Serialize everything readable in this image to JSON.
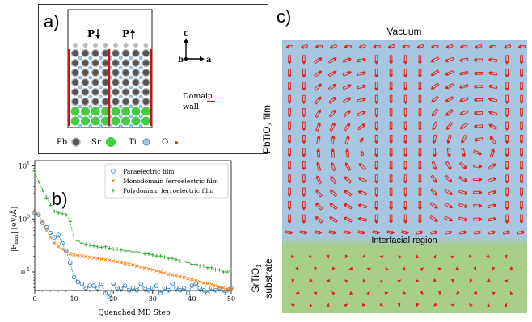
{
  "panel_a": {
    "label": "a)",
    "p_down": "P",
    "p_up": "P",
    "axis_c": "c",
    "axis_b": "b",
    "axis_a": "a",
    "domain_wall_label_1": "Domain",
    "domain_wall_label_2": "wall",
    "legend": [
      {
        "text": "Pb",
        "color": "#555555",
        "ring": true
      },
      {
        "text": "Sr",
        "color": "#44cc44",
        "ring": false
      },
      {
        "text": "Ti",
        "color": "#9ec9e8",
        "ring": true
      },
      {
        "text": "O",
        "color": "#d33333",
        "ring": false
      }
    ]
  },
  "panel_c": {
    "label": "c)",
    "vacuum": "Vacuum",
    "film_label": "PbTiO",
    "film_sub": "3",
    "film_suffix": " film",
    "interface": "Interfacial region",
    "substrate_1": "SrTiO",
    "substrate_sub": "3",
    "substrate_2": "substrate",
    "colors": {
      "film": "#a7c6e1",
      "substrate": "#a7cf8a",
      "arrow": "#e0261c"
    }
  },
  "chart_data": {
    "type": "scatter",
    "label": "b)",
    "xlabel": "Quenched MD Step",
    "ylabel": "|F",
    "ylabel_sub": "max",
    "ylabel_tail": "| [eV/Å]",
    "xlim": [
      0,
      50
    ],
    "ylim_log10": [
      -1.35,
      1.1
    ],
    "yscale": "log",
    "x_ticks": [
      "0",
      "10",
      "20",
      "30",
      "40",
      "50"
    ],
    "y_ticks": [
      {
        "base": "10",
        "exp": "1",
        "value": 10
      },
      {
        "base": "10",
        "exp": "0",
        "value": 1
      },
      {
        "base": "10",
        "exp": "-1",
        "value": 0.1
      }
    ],
    "legend_position": "top-right",
    "series": [
      {
        "name": "Paraelectric film",
        "marker": "circle",
        "color": "#1f77b4",
        "x": [
          0,
          1,
          2,
          3,
          4,
          5,
          6,
          7,
          8,
          9,
          10,
          11,
          12,
          13,
          14,
          15,
          16,
          17,
          18,
          19,
          20,
          21,
          22,
          23,
          24,
          25,
          26,
          27,
          28,
          29,
          30,
          31,
          32,
          33,
          34,
          35,
          36,
          37,
          38,
          39,
          40,
          41,
          42,
          43,
          44,
          45,
          46,
          47,
          48,
          49,
          50
        ],
        "y": [
          1.3,
          1.2,
          0.85,
          0.7,
          0.55,
          0.45,
          0.5,
          0.35,
          0.25,
          0.15,
          0.08,
          0.065,
          0.06,
          0.05,
          0.055,
          0.055,
          0.05,
          0.06,
          0.04,
          0.035,
          0.06,
          0.05,
          0.05,
          0.055,
          0.045,
          0.05,
          0.045,
          0.06,
          0.05,
          0.045,
          0.05,
          0.055,
          0.04,
          0.05,
          0.045,
          0.06,
          0.05,
          0.045,
          0.05,
          0.04,
          0.055,
          0.06,
          0.05,
          0.045,
          0.04,
          0.05,
          0.045,
          0.05,
          0.04,
          0.045,
          0.05
        ]
      },
      {
        "name": "Monodomain ferroelectric film",
        "marker": "x",
        "color": "#ff7f0e",
        "x": [
          0,
          1,
          2,
          3,
          4,
          5,
          6,
          7,
          8,
          9,
          10,
          11,
          12,
          13,
          14,
          15,
          16,
          17,
          18,
          19,
          20,
          21,
          22,
          23,
          24,
          25,
          26,
          27,
          28,
          29,
          30,
          31,
          32,
          33,
          34,
          35,
          36,
          37,
          38,
          39,
          40,
          41,
          42,
          43,
          44,
          45,
          46,
          47,
          48,
          49,
          50
        ],
        "y": [
          1.4,
          1.2,
          0.9,
          0.6,
          0.45,
          0.35,
          0.3,
          0.27,
          0.24,
          0.22,
          0.21,
          0.2,
          0.2,
          0.195,
          0.19,
          0.185,
          0.18,
          0.175,
          0.17,
          0.165,
          0.16,
          0.155,
          0.15,
          0.145,
          0.14,
          0.135,
          0.13,
          0.125,
          0.12,
          0.115,
          0.11,
          0.105,
          0.1,
          0.095,
          0.09,
          0.088,
          0.085,
          0.082,
          0.078,
          0.075,
          0.072,
          0.068,
          0.065,
          0.062,
          0.06,
          0.058,
          0.055,
          0.052,
          0.05,
          0.048,
          0.046
        ]
      },
      {
        "name": "Polydomain ferroelectric film",
        "marker": "plus",
        "color": "#2ca02c",
        "x": [
          0,
          1,
          2,
          3,
          4,
          5,
          6,
          7,
          8,
          9,
          10,
          11,
          12,
          13,
          14,
          15,
          16,
          17,
          18,
          19,
          20,
          21,
          22,
          23,
          24,
          25,
          26,
          27,
          28,
          29,
          30,
          31,
          32,
          33,
          34,
          35,
          36,
          37,
          38,
          39,
          40,
          41,
          42,
          43,
          44,
          45,
          46,
          47,
          48,
          49,
          50
        ],
        "y": [
          8,
          5,
          3.5,
          2.5,
          1.8,
          1.4,
          1.3,
          1.25,
          1.2,
          0.9,
          0.4,
          0.38,
          0.35,
          0.33,
          0.32,
          0.31,
          0.3,
          0.29,
          0.3,
          0.28,
          0.27,
          0.27,
          0.26,
          0.25,
          0.25,
          0.24,
          0.24,
          0.23,
          0.22,
          0.22,
          0.21,
          0.2,
          0.2,
          0.19,
          0.18,
          0.18,
          0.17,
          0.16,
          0.16,
          0.15,
          0.14,
          0.14,
          0.13,
          0.13,
          0.12,
          0.12,
          0.11,
          0.11,
          0.1,
          0.1,
          0.11
        ]
      }
    ]
  }
}
